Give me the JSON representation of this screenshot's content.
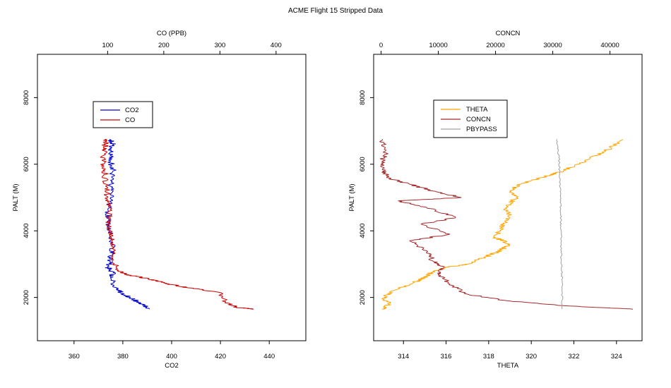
{
  "figure": {
    "title": "ACME Flight  15  Stripped Data"
  },
  "chart_data": [
    {
      "type": "line",
      "id": "left",
      "xlabel_bottom": "CO2",
      "xlabel_top": "CO (PPB)",
      "ylabel": "PALT (M)",
      "xlim_bottom": [
        345,
        455
      ],
      "xlim_top": [
        -25,
        453
      ],
      "ylim": [
        700,
        9300
      ],
      "xticks_bottom": [
        360,
        380,
        400,
        420,
        440
      ],
      "xticks_top": [
        100,
        200,
        300,
        400
      ],
      "yticks": [
        2000,
        4000,
        6000,
        8000
      ],
      "legend": {
        "placement": "upper-left",
        "entries": [
          {
            "label": "CO2",
            "color": "#0000cc"
          },
          {
            "label": "CO",
            "color": "#cc0000"
          }
        ]
      },
      "series": [
        {
          "name": "CO2",
          "axis": "bottom",
          "color": "#0000cc",
          "x": [
            391,
            388,
            384,
            380,
            377,
            375,
            376,
            374,
            375,
            376,
            375,
            374,
            374,
            375,
            375,
            376,
            375,
            375,
            376,
            375
          ],
          "y": [
            1650,
            1800,
            1950,
            2100,
            2300,
            2600,
            2750,
            2900,
            3200,
            3500,
            4000,
            4300,
            4600,
            5000,
            5400,
            5800,
            6100,
            6400,
            6600,
            6750
          ]
        },
        {
          "name": "CO",
          "axis": "top",
          "color": "#cc0000",
          "x": [
            360,
            330,
            310,
            300,
            240,
            210,
            190,
            160,
            130,
            115,
            110,
            108,
            105,
            102,
            103,
            100,
            97,
            95,
            92,
            94,
            96,
            95
          ],
          "y": [
            1650,
            1700,
            1850,
            2150,
            2300,
            2400,
            2500,
            2600,
            2700,
            2900,
            3300,
            3700,
            4000,
            4300,
            4700,
            5000,
            5400,
            5800,
            6100,
            6400,
            6600,
            6750
          ]
        }
      ]
    },
    {
      "type": "line",
      "id": "right",
      "xlabel_bottom": "THETA",
      "xlabel_top": "CONCN",
      "ylabel": "PALT (M)",
      "xlim_bottom": [
        312.6,
        325.2
      ],
      "xlim_top": [
        -1300,
        45600
      ],
      "ylim": [
        700,
        9300
      ],
      "xticks_bottom": [
        314,
        316,
        318,
        320,
        322,
        324
      ],
      "xticks_top": [
        0,
        10000,
        20000,
        30000,
        40000
      ],
      "yticks": [
        2000,
        4000,
        6000,
        8000
      ],
      "legend": {
        "placement": "upper-left",
        "entries": [
          {
            "label": "THETA",
            "color": "#ffa500"
          },
          {
            "label": "CONCN",
            "color": "#a52a2a"
          },
          {
            "label": "PBYPASS",
            "color": "#a0a0a0"
          }
        ]
      },
      "series": [
        {
          "name": "THETA",
          "axis": "bottom",
          "color": "#ffa500",
          "x": [
            313.0,
            313.3,
            313.1,
            313.5,
            314.5,
            315.0,
            315.3,
            316.0,
            317.0,
            317.8,
            318.5,
            319.0,
            318.3,
            318.6,
            319.0,
            318.8,
            319.3,
            319.0,
            319.5,
            320.5,
            321.5,
            322.5,
            323.5,
            324.3
          ],
          "y": [
            1650,
            1800,
            2000,
            2200,
            2450,
            2600,
            2750,
            2900,
            3000,
            3200,
            3400,
            3600,
            3800,
            4100,
            4400,
            4700,
            5000,
            5200,
            5400,
            5600,
            5800,
            6100,
            6400,
            6750
          ]
        },
        {
          "name": "CONCN",
          "axis": "top",
          "color": "#a52a2a",
          "x": [
            44000,
            32000,
            22000,
            15000,
            12000,
            10000,
            11000,
            9000,
            8000,
            5000,
            12000,
            7000,
            13000,
            8000,
            3000,
            14000,
            9000,
            5000,
            1000,
            500,
            300,
            800,
            200
          ],
          "y": [
            1650,
            1750,
            1900,
            2100,
            2400,
            2700,
            2900,
            3100,
            3400,
            3700,
            3900,
            4200,
            4400,
            4700,
            4900,
            5000,
            5200,
            5400,
            5600,
            5800,
            6100,
            6400,
            6750
          ]
        },
        {
          "name": "PBYPASS",
          "axis": "bottom",
          "color": "#a0a0a0",
          "x": [
            321.45,
            321.45,
            321.42,
            321.4,
            321.4,
            321.38,
            321.38,
            321.35,
            321.3,
            321.2
          ],
          "y": [
            1650,
            2500,
            3000,
            3500,
            4000,
            4500,
            5000,
            5500,
            6200,
            6750
          ]
        }
      ]
    }
  ]
}
